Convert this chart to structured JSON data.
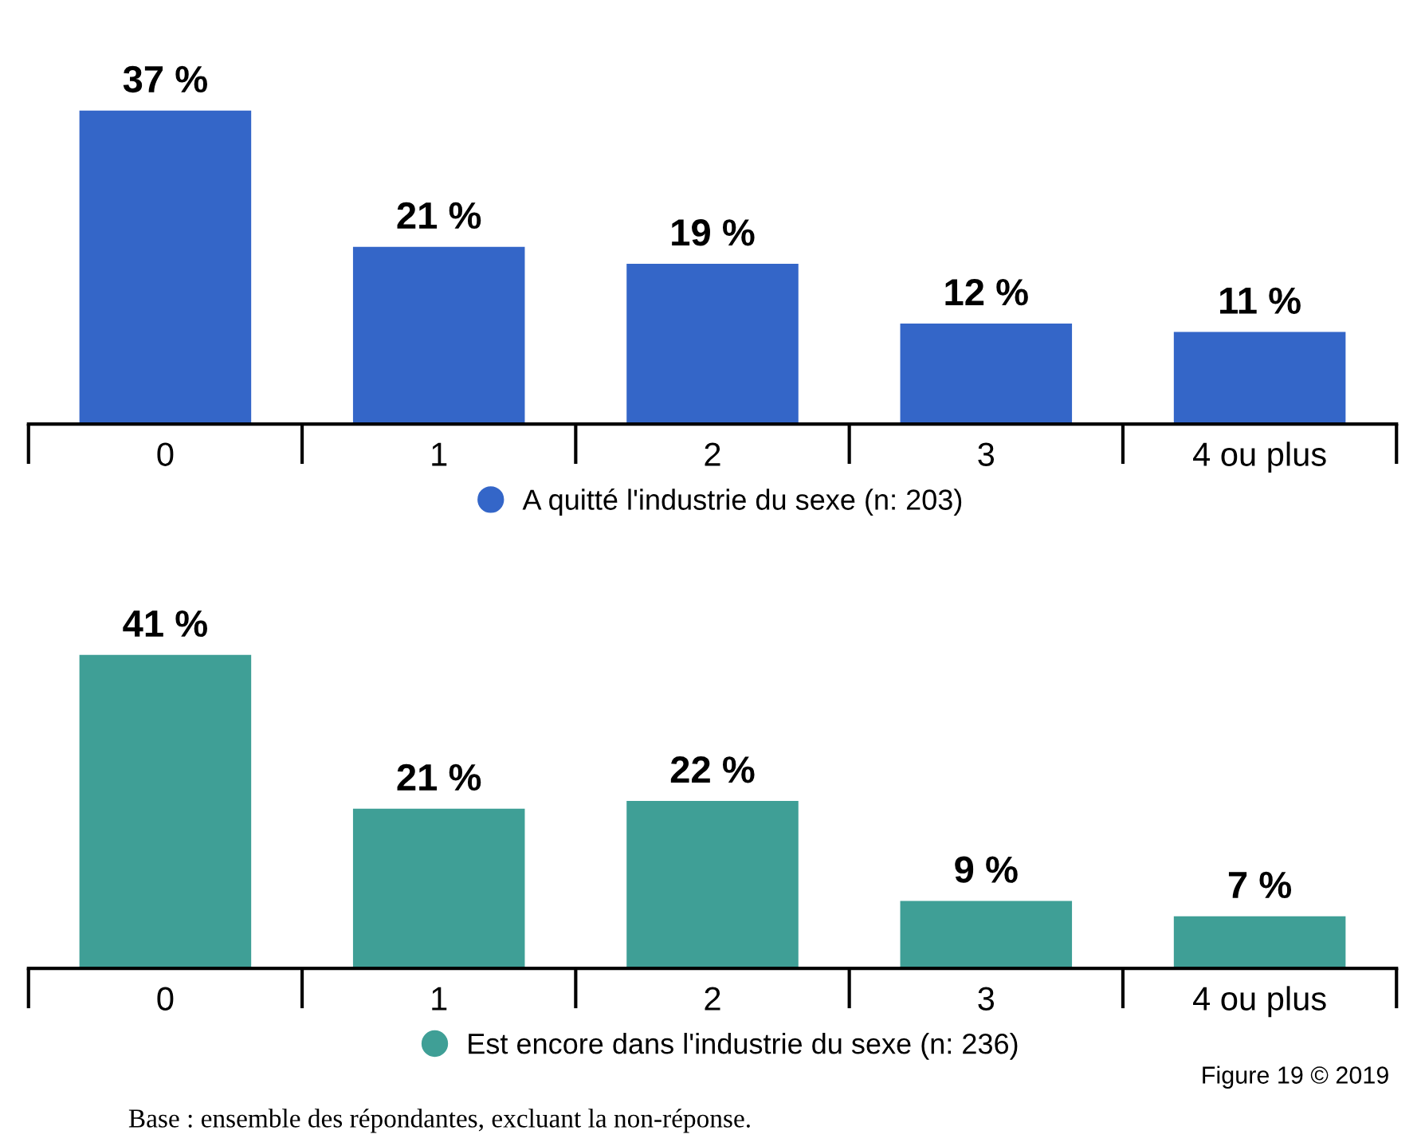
{
  "chart_data": [
    {
      "type": "bar",
      "categories": [
        "0",
        "1",
        "2",
        "3",
        "4 ou plus"
      ],
      "legend": "bottom",
      "data_labels": true,
      "series": [
        {
          "name": "A quitté l'industrie du sexe (n: 203)",
          "color": "#3466c8",
          "values": [
            37,
            21,
            19,
            12,
            11
          ],
          "value_labels": [
            "37 %",
            "21 %",
            "19 %",
            "12 %",
            "11 %"
          ]
        }
      ]
    },
    {
      "type": "bar",
      "categories": [
        "0",
        "1",
        "2",
        "3",
        "4 ou plus"
      ],
      "legend": "bottom",
      "data_labels": true,
      "series": [
        {
          "name": "Est encore dans l'industrie du sexe (n: 236)",
          "color": "#3f9f96",
          "values": [
            41,
            21,
            22,
            9,
            7
          ],
          "value_labels": [
            "41 %",
            "21 %",
            "22 %",
            "9 %",
            "7 %"
          ]
        }
      ],
      "annotations": [
        "Figure 19 © 2019",
        "Base : ensemble des répondantes, excluant la non-réponse."
      ]
    }
  ]
}
